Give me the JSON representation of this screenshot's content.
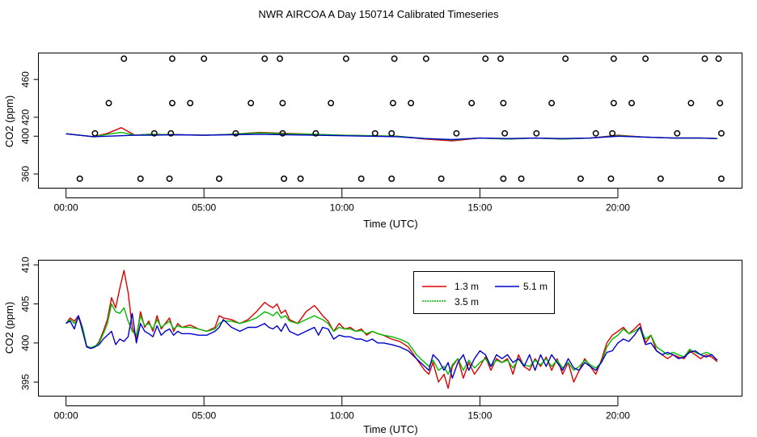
{
  "title": "NWR AIRCOA A  Day 150714  Calibrated Timeseries",
  "colors": {
    "s13": "#dd0000",
    "s35": "#00bb00",
    "s51": "#0000cc"
  },
  "chart_data": [
    {
      "type": "line+scatter",
      "xlabel": "Time (UTC)",
      "ylabel": "CO2 (ppm)",
      "xlim": [
        -1.0,
        24.5
      ],
      "ylim": [
        345,
        488
      ],
      "x_ticks": [
        0,
        5,
        10,
        15,
        20
      ],
      "x_tick_labels": [
        "00:00",
        "05:00",
        "10:00",
        "15:00",
        "20:00"
      ],
      "y_ticks": [
        360,
        400,
        420,
        460
      ],
      "y_tick_labels": [
        "360",
        "400",
        "420",
        "460"
      ],
      "calibration_points": {
        "levels_ppm": [
          355,
          403,
          435,
          482
        ],
        "times": {
          "355": [
            0.5,
            2.7,
            3.75,
            5.55,
            7.9,
            8.5,
            10.7,
            11.8,
            13.6,
            15.85,
            16.5,
            18.65,
            19.75,
            21.55,
            23.75
          ],
          "403": [
            1.05,
            3.2,
            3.8,
            6.15,
            7.85,
            9.05,
            11.2,
            11.8,
            14.15,
            15.9,
            17.05,
            19.2,
            19.8,
            22.15,
            23.75
          ],
          "435": [
            1.55,
            3.85,
            4.5,
            6.7,
            7.85,
            9.6,
            11.85,
            12.5,
            14.7,
            15.85,
            17.6,
            19.85,
            20.5,
            22.65,
            23.7
          ],
          "482": [
            2.1,
            3.85,
            5.0,
            7.2,
            7.75,
            10.15,
            11.9,
            13.05,
            15.2,
            15.75,
            18.1,
            19.85,
            21.0,
            23.15,
            23.65
          ]
        }
      },
      "series": [
        {
          "name": "1.3 m",
          "color_key": "s13",
          "x": [
            0,
            1,
            1.5,
            2,
            2.5,
            3,
            4,
            5,
            6,
            7,
            8,
            9,
            10,
            11,
            12,
            13,
            14,
            15,
            16,
            17,
            18,
            19,
            20,
            21,
            22,
            23,
            23.6
          ],
          "y": [
            402.5,
            399.5,
            403,
            409,
            401,
            402,
            401.5,
            401,
            402,
            404,
            403,
            402,
            401,
            400.5,
            400,
            397,
            395,
            398,
            397,
            398,
            397,
            398,
            401,
            399,
            398,
            398,
            397.5
          ]
        },
        {
          "name": "3.5 m",
          "color_key": "s35",
          "x": [
            0,
            1,
            1.5,
            2,
            2.5,
            3,
            4,
            5,
            6,
            7,
            8,
            9,
            10,
            11,
            12,
            13,
            14,
            15,
            16,
            17,
            18,
            19,
            20,
            21,
            22,
            23,
            23.6
          ],
          "y": [
            402.5,
            399.5,
            402,
            404,
            401,
            402,
            401.5,
            401,
            402,
            403.5,
            402.5,
            402,
            401,
            400.5,
            400,
            397.5,
            396,
            398,
            397,
            398,
            397,
            398,
            400.5,
            399,
            398,
            398,
            397.5
          ]
        },
        {
          "name": "5.1 m",
          "color_key": "s51",
          "x": [
            0,
            1,
            1.5,
            2,
            2.5,
            3,
            4,
            5,
            6,
            7,
            8,
            9,
            10,
            11,
            12,
            13,
            14,
            15,
            16,
            17,
            18,
            19,
            20,
            21,
            22,
            23,
            23.6
          ],
          "y": [
            402.5,
            399.5,
            400,
            400.5,
            401,
            401,
            401.5,
            401,
            401.5,
            402,
            401.5,
            401,
            400.5,
            400,
            399.5,
            397.5,
            396.5,
            398,
            397.5,
            398,
            397.5,
            398,
            400,
            399,
            398,
            398,
            397.5
          ]
        }
      ]
    },
    {
      "type": "line",
      "xlabel": "Time (UTC)",
      "ylabel": "CO2 (ppm)",
      "xlim": [
        -1.0,
        24.5
      ],
      "ylim": [
        393.2,
        410.6
      ],
      "x_ticks": [
        0,
        5,
        10,
        15,
        20
      ],
      "x_tick_labels": [
        "00:00",
        "05:00",
        "10:00",
        "15:00",
        "20:00"
      ],
      "y_ticks": [
        395,
        400,
        405,
        410
      ],
      "y_tick_labels": [
        "395",
        "400",
        "405",
        "410"
      ],
      "legend": {
        "position": "top-center",
        "entries": [
          "1.3 m",
          "5.1 m",
          "3.5 m"
        ]
      },
      "series": [
        {
          "name": "1.3 m",
          "color_key": "s13",
          "x": [
            0,
            0.15,
            0.3,
            0.45,
            0.6,
            0.75,
            0.9,
            1.05,
            1.2,
            1.35,
            1.5,
            1.65,
            1.8,
            1.95,
            2.1,
            2.25,
            2.4,
            2.55,
            2.7,
            2.85,
            3.0,
            3.15,
            3.3,
            3.45,
            3.6,
            3.75,
            3.9,
            4.05,
            4.2,
            4.5,
            4.8,
            5.1,
            5.4,
            5.55,
            5.7,
            6.0,
            6.3,
            6.6,
            6.9,
            7.2,
            7.35,
            7.5,
            7.65,
            7.8,
            7.95,
            8.1,
            8.4,
            8.7,
            9.0,
            9.15,
            9.3,
            9.5,
            9.7,
            9.9,
            10.1,
            10.3,
            10.5,
            10.7,
            10.9,
            11.1,
            11.3,
            11.5,
            11.8,
            12.1,
            12.4,
            12.7,
            13.0,
            13.15,
            13.3,
            13.5,
            13.7,
            13.85,
            14.0,
            14.2,
            14.4,
            14.6,
            14.8,
            15.0,
            15.2,
            15.4,
            15.6,
            15.8,
            16.0,
            16.2,
            16.4,
            16.6,
            16.8,
            17.0,
            17.2,
            17.4,
            17.6,
            17.8,
            18.0,
            18.2,
            18.4,
            18.6,
            18.8,
            19.0,
            19.2,
            19.4,
            19.6,
            19.8,
            20.0,
            20.2,
            20.4,
            20.6,
            20.8,
            21.0,
            21.2,
            21.4,
            21.6,
            21.8,
            22.0,
            22.2,
            22.4,
            22.6,
            22.8,
            23.0,
            23.2,
            23.4,
            23.6
          ],
          "y": [
            402.5,
            403.2,
            402.8,
            403.5,
            402.0,
            399.5,
            399.3,
            399.5,
            400.2,
            401.5,
            403.0,
            405.8,
            404.5,
            407.0,
            409.3,
            406.5,
            402.0,
            400.5,
            404.0,
            402.0,
            402.8,
            401.5,
            403.5,
            401.8,
            402.5,
            403.2,
            401.5,
            402.5,
            402.0,
            402.3,
            401.8,
            401.5,
            402.0,
            403.5,
            403.2,
            403.0,
            402.5,
            403.0,
            404.0,
            405.2,
            404.8,
            404.5,
            405.0,
            403.8,
            404.2,
            403.0,
            402.5,
            404.0,
            404.8,
            404.2,
            403.5,
            402.8,
            401.5,
            402.5,
            401.8,
            402.0,
            401.5,
            401.8,
            401.0,
            401.5,
            401.2,
            401.0,
            400.5,
            400.2,
            399.5,
            398.0,
            396.5,
            396.0,
            397.5,
            395.0,
            396.0,
            394.2,
            397.0,
            398.0,
            395.5,
            397.5,
            396.0,
            397.0,
            398.2,
            396.5,
            398.0,
            397.5,
            398.0,
            396.0,
            398.5,
            397.0,
            396.5,
            398.0,
            397.0,
            398.2,
            396.5,
            398.0,
            396.0,
            397.5,
            395.0,
            396.5,
            398.0,
            397.0,
            396.0,
            397.8,
            400.0,
            401.0,
            401.5,
            402.0,
            401.2,
            401.8,
            402.5,
            400.0,
            401.0,
            399.0,
            398.5,
            398.0,
            398.5,
            398.2,
            398.0,
            399.0,
            398.5,
            398.0,
            398.5,
            398.2,
            397.6
          ]
        },
        {
          "name": "3.5 m",
          "color_key": "s35",
          "x": [
            0,
            0.15,
            0.3,
            0.45,
            0.6,
            0.75,
            0.9,
            1.05,
            1.2,
            1.35,
            1.5,
            1.65,
            1.8,
            1.95,
            2.1,
            2.25,
            2.4,
            2.55,
            2.7,
            2.85,
            3.0,
            3.15,
            3.3,
            3.45,
            3.6,
            3.75,
            3.9,
            4.05,
            4.2,
            4.5,
            4.8,
            5.1,
            5.4,
            5.55,
            5.7,
            6.0,
            6.3,
            6.6,
            6.9,
            7.2,
            7.35,
            7.5,
            7.65,
            7.8,
            7.95,
            8.1,
            8.4,
            8.7,
            9.0,
            9.15,
            9.3,
            9.5,
            9.7,
            9.9,
            10.1,
            10.3,
            10.5,
            10.7,
            10.9,
            11.1,
            11.3,
            11.5,
            11.8,
            12.1,
            12.4,
            12.7,
            13.0,
            13.15,
            13.3,
            13.5,
            13.7,
            13.85,
            14.0,
            14.2,
            14.4,
            14.6,
            14.8,
            15.0,
            15.2,
            15.4,
            15.6,
            15.8,
            16.0,
            16.2,
            16.4,
            16.6,
            16.8,
            17.0,
            17.2,
            17.4,
            17.6,
            17.8,
            18.0,
            18.2,
            18.4,
            18.6,
            18.8,
            19.0,
            19.2,
            19.4,
            19.6,
            19.8,
            20.0,
            20.2,
            20.4,
            20.6,
            20.8,
            21.0,
            21.2,
            21.4,
            21.6,
            21.8,
            22.0,
            22.2,
            22.4,
            22.6,
            22.8,
            23.0,
            23.2,
            23.4,
            23.6
          ],
          "y": [
            402.5,
            403.0,
            402.5,
            403.2,
            402.0,
            399.6,
            399.4,
            399.6,
            400.0,
            401.2,
            402.5,
            405.0,
            404.0,
            403.8,
            404.5,
            402.8,
            401.5,
            401.0,
            403.5,
            402.2,
            402.5,
            401.8,
            403.0,
            402.0,
            402.4,
            402.8,
            401.8,
            402.2,
            402.0,
            402.0,
            401.8,
            401.5,
            401.8,
            402.5,
            402.8,
            402.8,
            402.5,
            402.8,
            403.2,
            404.0,
            403.8,
            403.5,
            404.0,
            403.2,
            403.5,
            402.8,
            402.5,
            403.0,
            403.5,
            403.2,
            403.0,
            402.5,
            401.5,
            402.0,
            401.8,
            401.8,
            401.5,
            401.6,
            401.2,
            401.5,
            401.2,
            401.0,
            400.8,
            400.5,
            400.0,
            398.5,
            397.5,
            397.0,
            397.8,
            396.5,
            397.0,
            396.0,
            397.2,
            398.0,
            396.5,
            397.8,
            396.8,
            397.5,
            398.0,
            397.0,
            397.8,
            397.5,
            397.8,
            396.8,
            398.0,
            397.2,
            397.0,
            397.8,
            397.2,
            398.0,
            397.0,
            397.8,
            396.8,
            397.5,
            396.5,
            397.0,
            397.8,
            397.2,
            396.8,
            397.5,
            399.5,
            400.5,
            401.0,
            401.8,
            401.2,
            401.5,
            402.0,
            400.5,
            401.0,
            399.5,
            399.0,
            398.5,
            398.8,
            398.5,
            398.2,
            399.2,
            398.8,
            398.5,
            398.8,
            398.5,
            397.8
          ]
        },
        {
          "name": "5.1 m",
          "color_key": "s51",
          "x": [
            0,
            0.15,
            0.3,
            0.45,
            0.6,
            0.75,
            0.9,
            1.05,
            1.2,
            1.35,
            1.5,
            1.65,
            1.8,
            1.95,
            2.1,
            2.25,
            2.4,
            2.55,
            2.7,
            2.85,
            3.0,
            3.15,
            3.3,
            3.45,
            3.6,
            3.75,
            3.9,
            4.05,
            4.2,
            4.5,
            4.8,
            5.1,
            5.4,
            5.55,
            5.7,
            6.0,
            6.3,
            6.6,
            6.9,
            7.2,
            7.35,
            7.5,
            7.65,
            7.8,
            7.95,
            8.1,
            8.4,
            8.7,
            9.0,
            9.15,
            9.3,
            9.5,
            9.7,
            9.9,
            10.1,
            10.3,
            10.5,
            10.7,
            10.9,
            11.1,
            11.3,
            11.5,
            11.8,
            12.1,
            12.4,
            12.7,
            13.0,
            13.15,
            13.3,
            13.5,
            13.7,
            13.85,
            14.0,
            14.2,
            14.4,
            14.6,
            14.8,
            15.0,
            15.2,
            15.4,
            15.6,
            15.8,
            16.0,
            16.2,
            16.4,
            16.6,
            16.8,
            17.0,
            17.2,
            17.4,
            17.6,
            17.8,
            18.0,
            18.2,
            18.4,
            18.6,
            18.8,
            19.0,
            19.2,
            19.4,
            19.6,
            19.8,
            20.0,
            20.2,
            20.4,
            20.6,
            20.8,
            21.0,
            21.2,
            21.4,
            21.6,
            21.8,
            22.0,
            22.2,
            22.4,
            22.6,
            22.8,
            23.0,
            23.2,
            23.4,
            23.6
          ],
          "y": [
            402.5,
            402.8,
            401.8,
            403.5,
            401.5,
            399.5,
            399.3,
            399.5,
            399.8,
            400.5,
            401.0,
            401.5,
            399.8,
            400.5,
            400.2,
            400.8,
            403.8,
            400.0,
            402.5,
            401.5,
            401.2,
            400.8,
            402.2,
            401.0,
            401.5,
            401.8,
            401.0,
            401.5,
            401.2,
            401.2,
            401.0,
            401.0,
            401.5,
            402.0,
            403.0,
            402.0,
            401.5,
            402.0,
            402.0,
            402.5,
            402.0,
            401.8,
            402.2,
            401.5,
            402.5,
            401.5,
            401.0,
            401.5,
            402.0,
            401.0,
            402.0,
            401.8,
            400.5,
            401.0,
            400.8,
            400.8,
            400.5,
            400.5,
            400.2,
            400.5,
            400.0,
            400.0,
            399.8,
            399.5,
            399.0,
            398.0,
            397.0,
            396.5,
            398.5,
            397.8,
            396.5,
            397.5,
            395.5,
            397.5,
            398.5,
            396.5,
            398.0,
            399.0,
            398.5,
            397.0,
            398.5,
            398.0,
            398.5,
            397.5,
            398.0,
            397.0,
            398.5,
            396.5,
            398.5,
            397.0,
            398.5,
            397.5,
            396.5,
            398.0,
            396.8,
            396.5,
            397.5,
            397.0,
            396.5,
            397.5,
            398.8,
            399.0,
            400.0,
            400.5,
            400.2,
            401.0,
            402.0,
            399.8,
            400.0,
            399.0,
            398.5,
            398.8,
            398.5,
            398.0,
            398.2,
            398.8,
            399.0,
            398.5,
            398.2,
            398.5,
            397.8
          ]
        }
      ]
    }
  ]
}
